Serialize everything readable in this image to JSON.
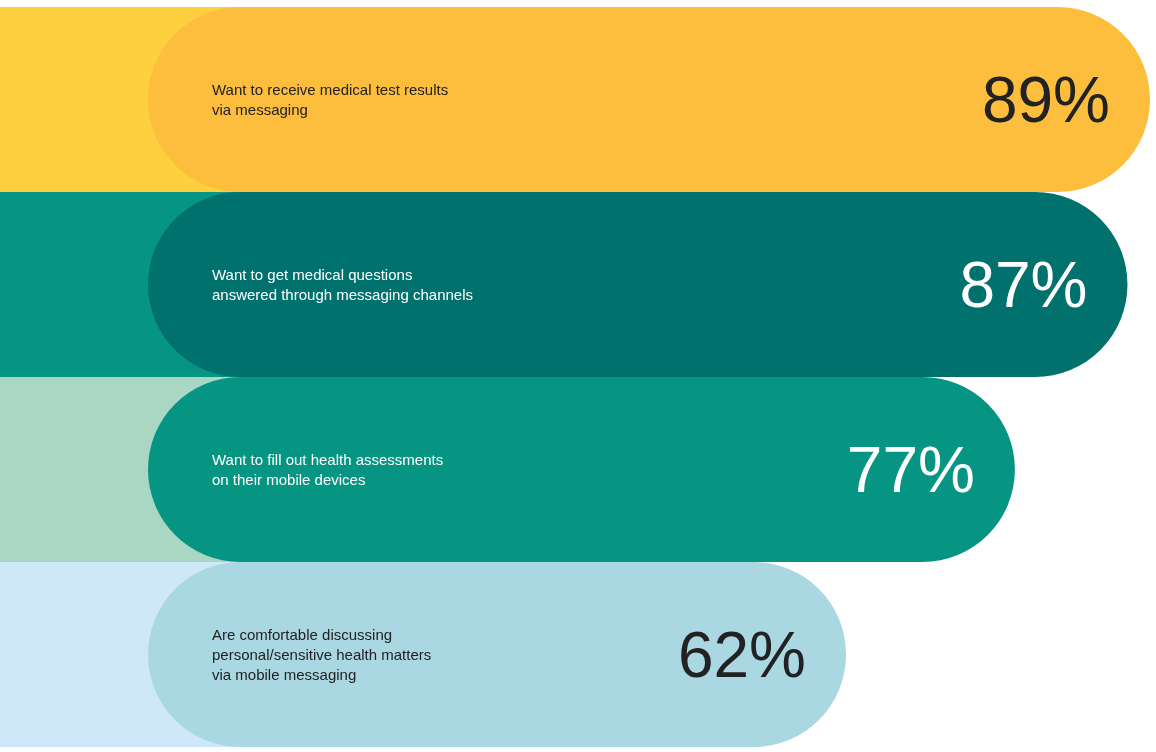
{
  "chart_data": {
    "type": "bar",
    "orientation": "horizontal",
    "categories": [
      "Want to receive medical test results\nvia messaging",
      "Want to get medical questions\nanswered through messaging channels",
      "Want to fill out health assessments\non their mobile devices",
      "Are comfortable discussing\npersonal/sensitive health matters\nvia mobile messaging"
    ],
    "values": [
      89,
      87,
      77,
      62
    ],
    "colors": [
      "#fdbd3d",
      "#00716d",
      "#069483",
      "#a9d8e3"
    ],
    "value_labels": [
      "89%",
      "87%",
      "77%",
      "62%"
    ]
  }
}
